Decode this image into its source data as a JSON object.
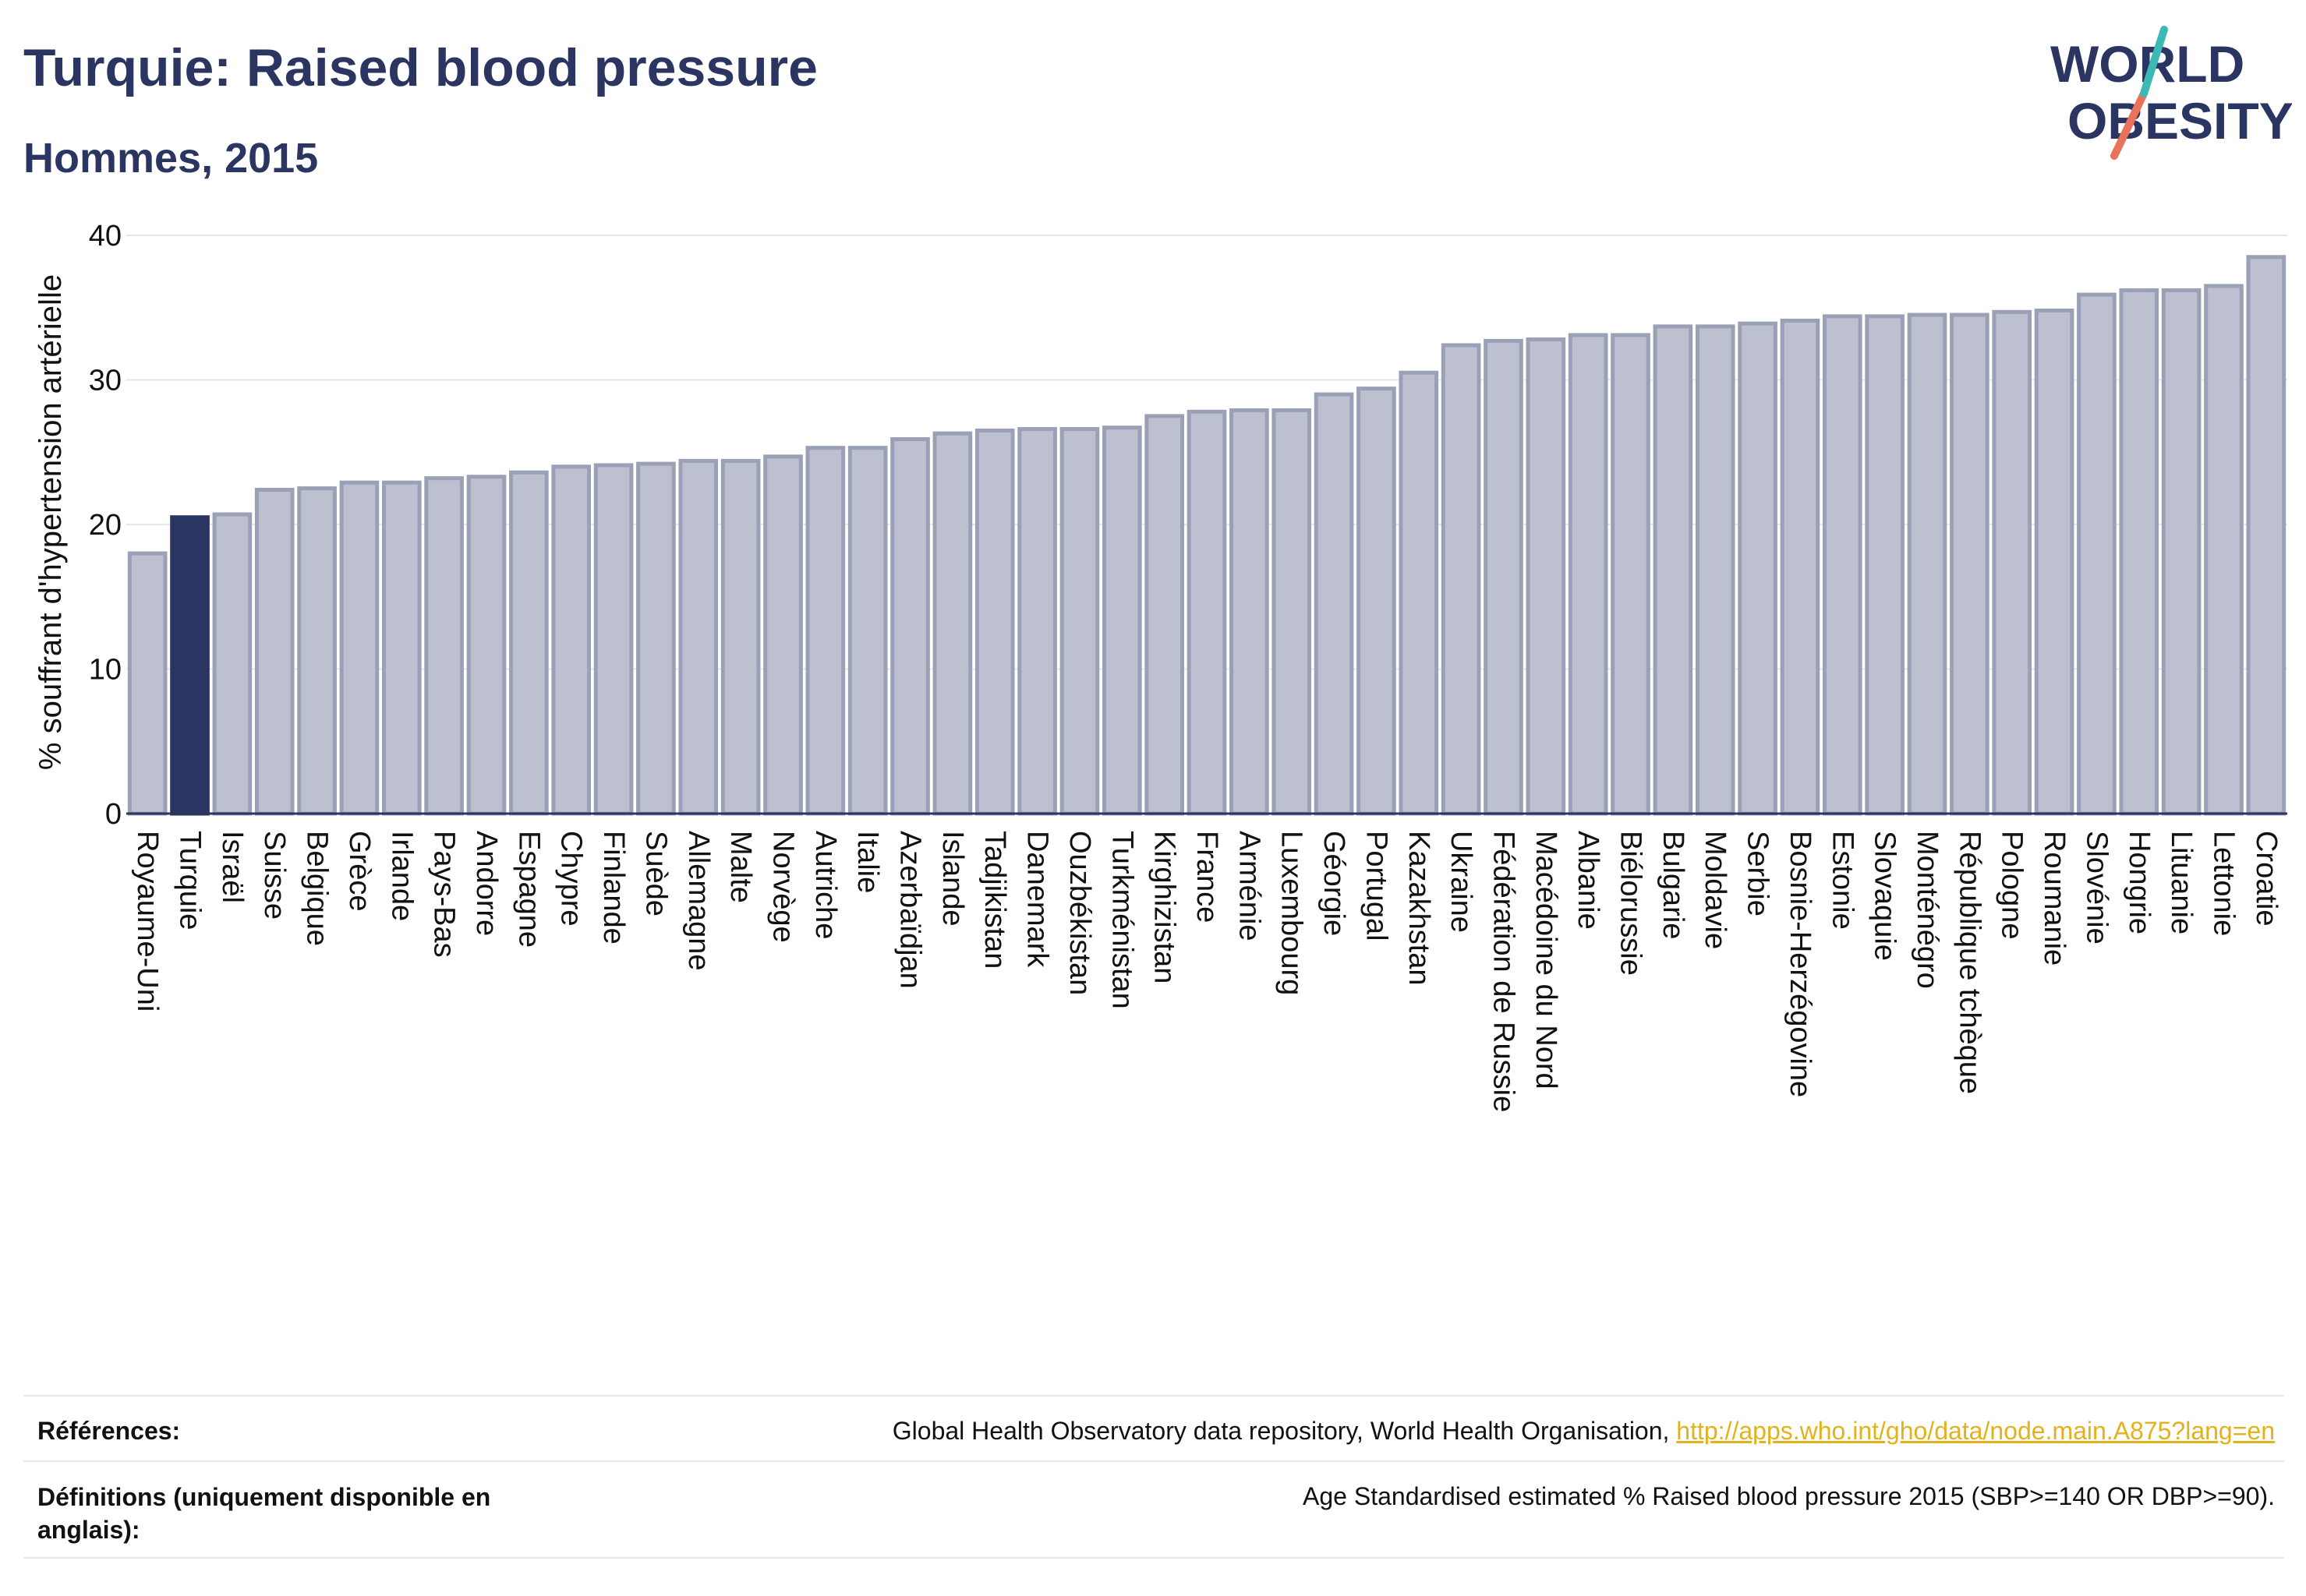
{
  "header": {
    "title": "Turquie: Raised blood pressure",
    "subtitle": "Hommes, 2015"
  },
  "logo": {
    "line1": "WORLD",
    "line2": "OBESITY"
  },
  "colors": {
    "highlight": "#2a3561",
    "bar": "#bcc0cf",
    "bar_stroke": "#9aa0b6",
    "link": "#e3b21b"
  },
  "chart_data": {
    "type": "bar",
    "title": "Turquie: Raised blood pressure",
    "subtitle": "Hommes, 2015",
    "xlabel": "",
    "ylabel": "% souffrant d'hypertension artérielle",
    "ylim": [
      0,
      40
    ],
    "yticks": [
      0,
      10,
      20,
      30,
      40
    ],
    "grid": true,
    "highlight": "Turquie",
    "categories": [
      "Royaume-Uni",
      "Turquie",
      "Israël",
      "Suisse",
      "Belgique",
      "Grèce",
      "Irlande",
      "Pays-Bas",
      "Andorre",
      "Espagne",
      "Chypre",
      "Finlande",
      "Suède",
      "Allemagne",
      "Malte",
      "Norvège",
      "Autriche",
      "Italie",
      "Azerbaïdjan",
      "Islande",
      "Tadjikistan",
      "Danemark",
      "Ouzbékistan",
      "Turkménistan",
      "Kirghizistan",
      "France",
      "Arménie",
      "Luxembourg",
      "Géorgie",
      "Portugal",
      "Kazakhstan",
      "Ukraine",
      "Fédération de Russie",
      "Macédoine du Nord",
      "Albanie",
      "Biélorussie",
      "Bulgarie",
      "Moldavie",
      "Serbie",
      "Bosnie-Herzégovine",
      "Estonie",
      "Slovaquie",
      "Monténégro",
      "République tchèque",
      "Pologne",
      "Roumanie",
      "Slovénie",
      "Hongrie",
      "Lituanie",
      "Lettonie",
      "Croatie"
    ],
    "values": [
      18.0,
      20.5,
      20.7,
      22.4,
      22.5,
      22.9,
      22.9,
      23.2,
      23.3,
      23.6,
      24.0,
      24.1,
      24.2,
      24.4,
      24.4,
      24.7,
      25.3,
      25.3,
      25.9,
      26.3,
      26.5,
      26.6,
      26.6,
      26.7,
      27.5,
      27.8,
      27.9,
      27.9,
      29.0,
      29.4,
      30.5,
      32.4,
      32.7,
      32.8,
      33.1,
      33.1,
      33.7,
      33.7,
      33.9,
      34.1,
      34.4,
      34.4,
      34.5,
      34.5,
      34.7,
      34.8,
      35.9,
      36.2,
      36.2,
      36.5,
      38.5
    ]
  },
  "footer": {
    "ref_label": "Références:",
    "ref_text": "Global Health Observatory data repository, World Health Organisation, ",
    "ref_link": "http://apps.who.int/gho/data/node.main.A875?lang=en",
    "def_label_1": "Définitions (uniquement disponible en",
    "def_label_2": "anglais):",
    "def_text": "Age Standardised estimated % Raised blood pressure 2015 (SBP>=140 OR DBP>=90)."
  }
}
